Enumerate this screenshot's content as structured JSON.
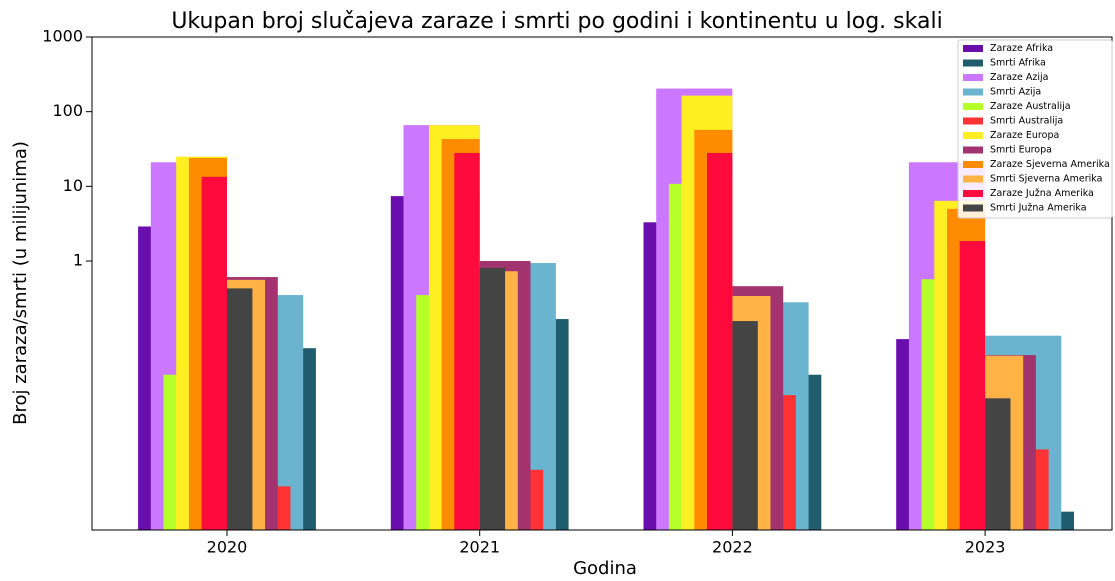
{
  "chart_data": {
    "type": "bar",
    "title": "Ukupan broj slučajeva zaraze i smrti po godini i kontinentu u log. skali",
    "x_label": "Godina",
    "y_label": "Broj zaraza/smrti (u milijunima)",
    "yscale": "log",
    "ylim": [
      0.00025,
      1000
    ],
    "yticks": [
      1,
      10,
      100,
      1000
    ],
    "legend": "upper right",
    "categories": [
      "2020",
      "2021",
      "2022",
      "2023"
    ],
    "series": [
      {
        "name": "Zaraze Afrika",
        "color": "#6a0dad",
        "values": [
          2.9,
          7.4,
          3.3,
          0.09
        ]
      },
      {
        "name": "Smrti Afrika",
        "color": "#1f5c6e",
        "values": [
          0.068,
          0.167,
          0.03,
          0.00044
        ]
      },
      {
        "name": "Zaraze Azija",
        "color": "#cc77ff",
        "values": [
          21,
          66,
          204,
          21
        ]
      },
      {
        "name": "Smrti Azija",
        "color": "#6ab4d0",
        "values": [
          0.35,
          0.94,
          0.28,
          0.1
        ]
      },
      {
        "name": "Zaraze Australija",
        "color": "#b5ff2b",
        "values": [
          0.03,
          0.35,
          10.8,
          0.57
        ]
      },
      {
        "name": "Smrti Australija",
        "color": "#ff3333",
        "values": [
          0.00096,
          0.0016,
          0.016,
          0.003
        ]
      },
      {
        "name": "Zaraze Europa",
        "color": "#ffee22",
        "values": [
          25,
          66,
          164,
          6.4
        ]
      },
      {
        "name": "Smrti Europa",
        "color": "#a3336e",
        "values": [
          0.61,
          1.0,
          0.46,
          0.055
        ]
      },
      {
        "name": "Zaraze Sjeverna Amerika",
        "color": "#ff8c00",
        "values": [
          24,
          43,
          57,
          5.0
        ]
      },
      {
        "name": "Smrti Sjeverna Amerika",
        "color": "#ffb347",
        "values": [
          0.56,
          0.73,
          0.34,
          0.054
        ]
      },
      {
        "name": "Zaraze Južna Amerika",
        "color": "#ff0a3c",
        "values": [
          13.4,
          28,
          28,
          1.85
        ]
      },
      {
        "name": "Smrti Južna Amerika",
        "color": "#444444",
        "values": [
          0.43,
          0.81,
          0.157,
          0.0145
        ]
      }
    ]
  }
}
